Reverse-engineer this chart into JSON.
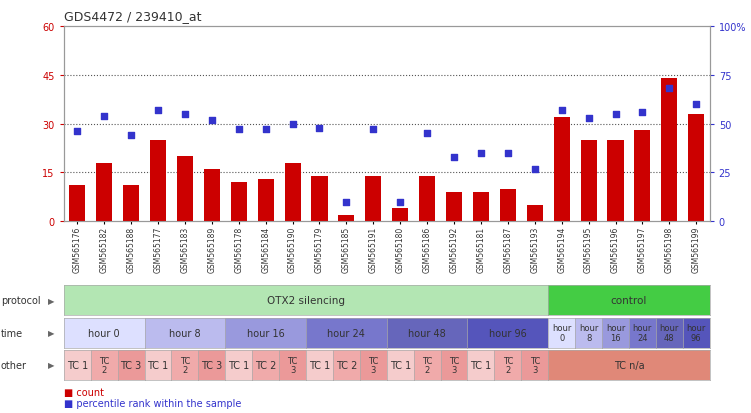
{
  "title": "GDS4472 / 239410_at",
  "samples": [
    "GSM565176",
    "GSM565182",
    "GSM565188",
    "GSM565177",
    "GSM565183",
    "GSM565189",
    "GSM565178",
    "GSM565184",
    "GSM565190",
    "GSM565179",
    "GSM565185",
    "GSM565191",
    "GSM565180",
    "GSM565186",
    "GSM565192",
    "GSM565181",
    "GSM565187",
    "GSM565193",
    "GSM565194",
    "GSM565195",
    "GSM565196",
    "GSM565197",
    "GSM565198",
    "GSM565199"
  ],
  "counts": [
    11,
    18,
    11,
    25,
    20,
    16,
    12,
    13,
    18,
    14,
    2,
    14,
    4,
    14,
    9,
    9,
    10,
    5,
    32,
    25,
    25,
    28,
    44,
    33
  ],
  "percentiles": [
    46,
    54,
    44,
    57,
    55,
    52,
    47,
    47,
    50,
    48,
    10,
    47,
    10,
    45,
    33,
    35,
    35,
    27,
    57,
    53,
    55,
    56,
    68,
    60
  ],
  "bar_color": "#cc0000",
  "dot_color": "#3333cc",
  "ylim_left": [
    0,
    60
  ],
  "ylim_right": [
    0,
    100
  ],
  "yticks_left": [
    0,
    15,
    30,
    45,
    60
  ],
  "yticks_right": [
    0,
    25,
    50,
    75,
    100
  ],
  "ytick_labels_left": [
    "0",
    "15",
    "30",
    "45",
    "60"
  ],
  "ytick_labels_right": [
    "0",
    "25",
    "50",
    "75",
    "100%"
  ],
  "hlines": [
    15,
    30,
    45
  ],
  "protocol_groups": [
    {
      "text": "OTX2 silencing",
      "start": 0,
      "end": 17,
      "color": "#b3e6b3"
    },
    {
      "text": "control",
      "start": 18,
      "end": 23,
      "color": "#44cc44"
    }
  ],
  "time_groups": [
    {
      "text": "hour 0",
      "start": 0,
      "end": 2,
      "color": "#dde0ff"
    },
    {
      "text": "hour 8",
      "start": 3,
      "end": 5,
      "color": "#bbbbee"
    },
    {
      "text": "hour 16",
      "start": 6,
      "end": 8,
      "color": "#9999dd"
    },
    {
      "text": "hour 24",
      "start": 9,
      "end": 11,
      "color": "#7777cc"
    },
    {
      "text": "hour 48",
      "start": 12,
      "end": 14,
      "color": "#6666bb"
    },
    {
      "text": "hour 96",
      "start": 15,
      "end": 17,
      "color": "#5555bb"
    },
    {
      "text": "hour\n0",
      "start": 18,
      "end": 18,
      "color": "#dde0ff"
    },
    {
      "text": "hour\n8",
      "start": 19,
      "end": 19,
      "color": "#bbbbee"
    },
    {
      "text": "hour\n16",
      "start": 20,
      "end": 20,
      "color": "#9999dd"
    },
    {
      "text": "hour\n24",
      "start": 21,
      "end": 21,
      "color": "#7777cc"
    },
    {
      "text": "hour\n48",
      "start": 22,
      "end": 22,
      "color": "#6666bb"
    },
    {
      "text": "hour\n96",
      "start": 23,
      "end": 23,
      "color": "#5555bb"
    }
  ],
  "other_groups": [
    {
      "text": "TC 1",
      "start": 0,
      "end": 0,
      "color": "#f5cccc"
    },
    {
      "text": "TC\n2",
      "start": 1,
      "end": 1,
      "color": "#f0aaaa"
    },
    {
      "text": "TC 3",
      "start": 2,
      "end": 2,
      "color": "#eb9999"
    },
    {
      "text": "TC 1",
      "start": 3,
      "end": 3,
      "color": "#f5cccc"
    },
    {
      "text": "TC\n2",
      "start": 4,
      "end": 4,
      "color": "#f0aaaa"
    },
    {
      "text": "TC 3",
      "start": 5,
      "end": 5,
      "color": "#eb9999"
    },
    {
      "text": "TC 1",
      "start": 6,
      "end": 6,
      "color": "#f5cccc"
    },
    {
      "text": "TC 2",
      "start": 7,
      "end": 7,
      "color": "#f0aaaa"
    },
    {
      "text": "TC\n3",
      "start": 8,
      "end": 8,
      "color": "#eb9999"
    },
    {
      "text": "TC 1",
      "start": 9,
      "end": 9,
      "color": "#f5cccc"
    },
    {
      "text": "TC 2",
      "start": 10,
      "end": 10,
      "color": "#f0aaaa"
    },
    {
      "text": "TC\n3",
      "start": 11,
      "end": 11,
      "color": "#eb9999"
    },
    {
      "text": "TC 1",
      "start": 12,
      "end": 12,
      "color": "#f5cccc"
    },
    {
      "text": "TC\n2",
      "start": 13,
      "end": 13,
      "color": "#f0aaaa"
    },
    {
      "text": "TC\n3",
      "start": 14,
      "end": 14,
      "color": "#eb9999"
    },
    {
      "text": "TC 1",
      "start": 15,
      "end": 15,
      "color": "#f5cccc"
    },
    {
      "text": "TC\n2",
      "start": 16,
      "end": 16,
      "color": "#f0aaaa"
    },
    {
      "text": "TC\n3",
      "start": 17,
      "end": 17,
      "color": "#eb9999"
    },
    {
      "text": "TC n/a",
      "start": 18,
      "end": 23,
      "color": "#e08878"
    }
  ],
  "legend_items": [
    {
      "label": "count",
      "color": "#cc0000"
    },
    {
      "label": "percentile rank within the sample",
      "color": "#3333cc"
    }
  ],
  "bg_color": "#ffffff",
  "border_color": "#999999"
}
